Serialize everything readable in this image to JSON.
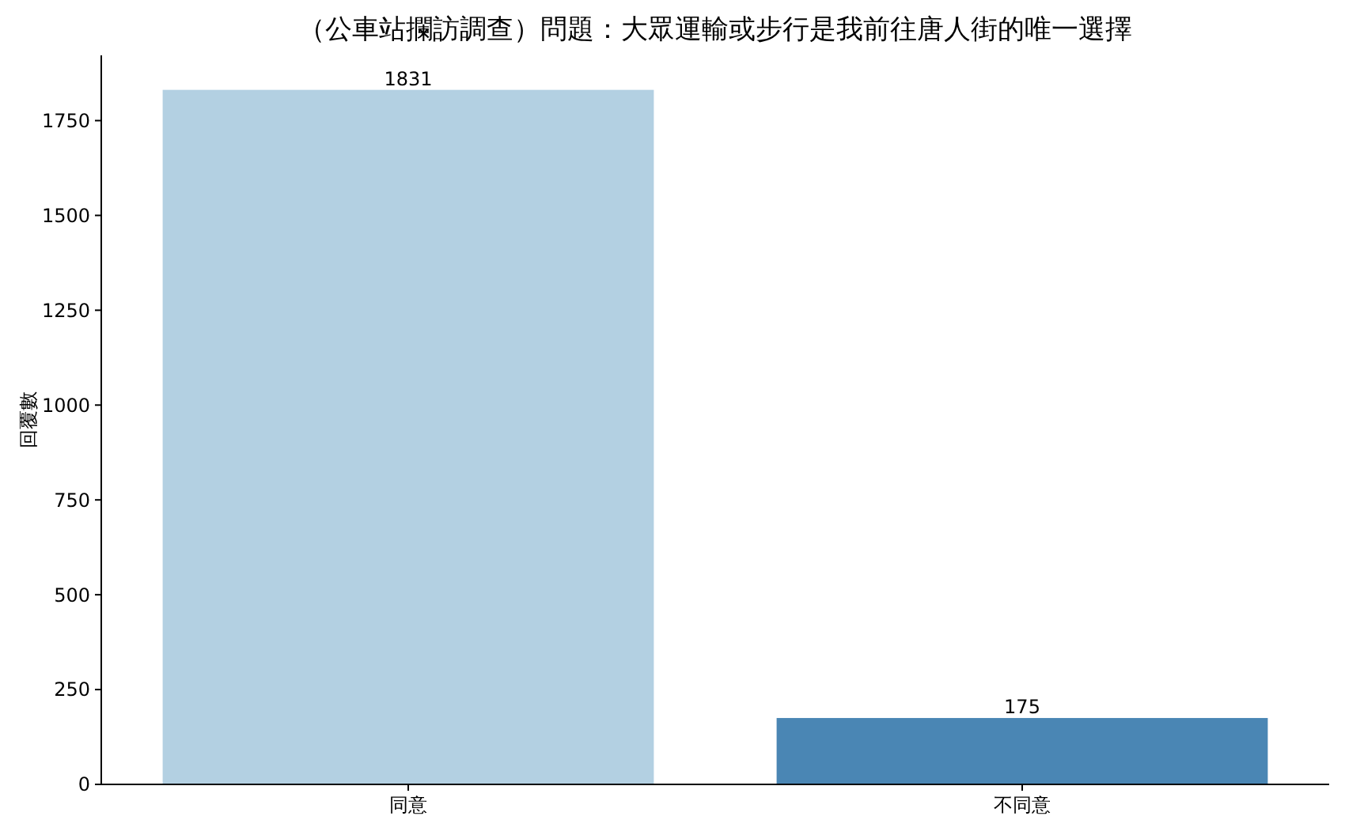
{
  "chart_data": {
    "type": "bar",
    "title": "（公車站攔訪調查）問題：大眾運輸或步行是我前往唐人街的唯一選擇",
    "ylabel": "回覆數",
    "categories": [
      "同意",
      "不同意"
    ],
    "values": [
      1831,
      175
    ],
    "colors": [
      "#b3d0e2",
      "#4a86b4"
    ],
    "ylim": [
      0,
      1922
    ],
    "yticks": [
      0,
      250,
      500,
      750,
      1000,
      1250,
      1500,
      1750
    ],
    "data_labels": true
  }
}
